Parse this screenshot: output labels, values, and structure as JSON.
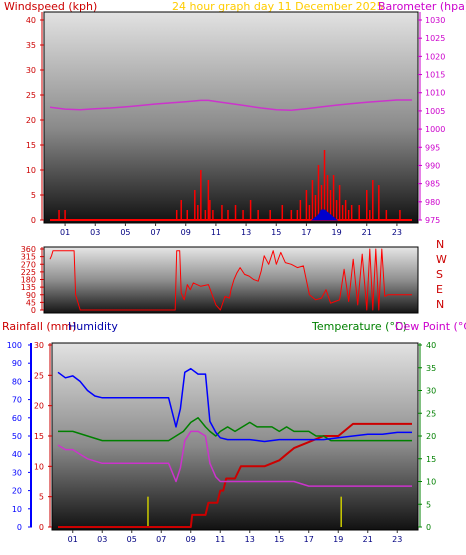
{
  "header": {
    "left_label": "Windspeed (kph)",
    "title": "24 hour graph day   11 December 2025",
    "right_label": "Barometer (hpa)"
  },
  "direction_labels": [
    "N",
    "W",
    "S",
    "E",
    "N"
  ],
  "bottom_header": {
    "rainfall": "Rainfall (mm)",
    "humidity": "Humidity",
    "temperature": "Temperature (°C)",
    "dewpoint": "Dew Point (°C)"
  },
  "colors": {
    "wind": "#ff0000",
    "gust_fill": "#0000cc",
    "barometer": "#cc33cc",
    "direction": "#ff0000",
    "humidity": "#0000ff",
    "temperature": "#008000",
    "dewpoint": "#cc33cc",
    "rain": "#cc0000",
    "rain_rate": "#cccc00",
    "title": "#ffcc00",
    "left_axis": "#cc0000",
    "rain_axis": "#0000ff",
    "temp_axis": "#008000",
    "baro_axis": "#cc00cc"
  },
  "chart_data": [
    {
      "type": "line",
      "id": "wind_baro",
      "x_ticks": [
        "01",
        "03",
        "05",
        "07",
        "09",
        "11",
        "13",
        "15",
        "17",
        "19",
        "21",
        "23"
      ],
      "wind_axis": {
        "ylim": [
          0,
          40
        ],
        "ticks": [
          "0",
          "5",
          "10",
          "15",
          "20",
          "25",
          "30",
          "35",
          "40"
        ]
      },
      "baro_axis": {
        "ylim": [
          975,
          1030
        ],
        "ticks": [
          "975",
          "980",
          "985",
          "990",
          "995",
          "1000",
          "1005",
          "1010",
          "1015",
          "1020",
          "1025",
          "1030"
        ]
      },
      "series": [
        {
          "name": "Windspeed",
          "x": [
            0,
            0.6,
            0.7,
            1,
            1.05,
            1.1,
            8.3,
            8.4,
            8.6,
            8.7,
            8.9,
            9.1,
            9.4,
            9.6,
            9.8,
            10,
            10.3,
            10.5,
            10.6,
            10.8,
            11,
            11.2,
            11.4,
            11.6,
            11.8,
            12,
            12.3,
            12.6,
            12.8,
            13,
            13.3,
            13.5,
            13.8,
            14,
            14.3,
            14.6,
            14.9,
            15.1,
            15.4,
            15.7,
            16,
            16.2,
            16.4,
            16.6,
            16.8,
            17,
            17.2,
            17.4,
            17.6,
            17.8,
            18,
            18.2,
            18.4,
            18.6,
            18.8,
            19,
            19.2,
            19.4,
            19.6,
            19.8,
            20,
            20.2,
            20.5,
            20.8,
            21,
            21.2,
            21.4,
            21.6,
            21.8,
            22,
            22.3,
            22.6,
            22.9,
            23.2,
            23.5,
            24
          ],
          "values": [
            0,
            2,
            0,
            2,
            0,
            0,
            0,
            2,
            0,
            4,
            0,
            2,
            0,
            6,
            3,
            10,
            2,
            8,
            4,
            2,
            0,
            0,
            3,
            0,
            2,
            0,
            3,
            0,
            2,
            0,
            4,
            0,
            2,
            0,
            0,
            2,
            0,
            0,
            3,
            0,
            2,
            0,
            2,
            4,
            0,
            6,
            3,
            8,
            5,
            11,
            7,
            14,
            9,
            6,
            9,
            4,
            7,
            3,
            4,
            2,
            3,
            0,
            3,
            0,
            6,
            2,
            8,
            0,
            7,
            0,
            2,
            0,
            0,
            2,
            0,
            0
          ]
        },
        {
          "name": "Gust",
          "x": [
            17.4,
            17.8,
            18,
            18.2,
            18.6,
            19
          ],
          "values": [
            0,
            1,
            2,
            2,
            1,
            0
          ]
        },
        {
          "name": "Barometer",
          "x": [
            0,
            1,
            2,
            3,
            4,
            5,
            6,
            7,
            8,
            9,
            10,
            10.5,
            11,
            12,
            13,
            14,
            15,
            16,
            17,
            18,
            19,
            20,
            21,
            22,
            23,
            24
          ],
          "values": [
            1006,
            1005.5,
            1005.3,
            1005.6,
            1005.8,
            1006.1,
            1006.5,
            1006.9,
            1007.2,
            1007.5,
            1007.9,
            1007.9,
            1007.6,
            1007.0,
            1006.4,
            1005.8,
            1005.3,
            1005.2,
            1005.6,
            1006.1,
            1006.6,
            1007.0,
            1007.4,
            1007.7,
            1008.0,
            1008.0
          ]
        }
      ]
    },
    {
      "type": "line",
      "id": "direction",
      "x_ticks": [
        "01",
        "03",
        "05",
        "07",
        "09",
        "11",
        "13",
        "15",
        "17",
        "19",
        "21",
        "23"
      ],
      "ylim": [
        0,
        360
      ],
      "y_ticks": [
        "0",
        "45",
        "90",
        "135",
        "180",
        "225",
        "270",
        "315",
        "360"
      ],
      "series": [
        {
          "name": "Direction",
          "x": [
            0,
            0.1,
            0.2,
            1.6,
            1.7,
            2,
            8.3,
            8.4,
            8.6,
            8.7,
            8.9,
            9.1,
            9.3,
            9.5,
            10,
            10.5,
            11,
            11.3,
            11.6,
            11.9,
            12,
            12.2,
            12.4,
            12.6,
            12.9,
            13.2,
            13.5,
            13.8,
            14,
            14.2,
            14.5,
            14.8,
            15,
            15.3,
            15.6,
            16,
            16.4,
            16.8,
            17.2,
            17.6,
            18,
            18.3,
            18.6,
            18.9,
            19.2,
            19.5,
            19.8,
            20.1,
            20.4,
            20.7,
            21,
            21.2,
            21.4,
            21.6,
            21.8,
            22,
            22.2,
            22.4,
            24
          ],
          "values": [
            300,
            320,
            350,
            350,
            90,
            0,
            0,
            350,
            350,
            100,
            60,
            150,
            120,
            160,
            140,
            150,
            30,
            0,
            80,
            70,
            120,
            180,
            220,
            250,
            210,
            200,
            180,
            170,
            230,
            320,
            270,
            350,
            270,
            340,
            280,
            270,
            250,
            260,
            90,
            60,
            70,
            120,
            40,
            50,
            60,
            240,
            50,
            300,
            30,
            330,
            0,
            360,
            0,
            360,
            0,
            360,
            80,
            90,
            90
          ]
        }
      ]
    },
    {
      "type": "line",
      "id": "temp_hum_rain",
      "x_ticks": [
        "01",
        "03",
        "05",
        "07",
        "09",
        "11",
        "13",
        "15",
        "17",
        "19",
        "21",
        "23"
      ],
      "rain_axis": {
        "ylim": [
          0,
          100
        ],
        "ticks": [
          "0",
          "10",
          "20",
          "30",
          "40",
          "50",
          "60",
          "70",
          "80",
          "90",
          "100"
        ]
      },
      "humidity_axis": {
        "ylim": [
          0,
          30
        ],
        "ticks": [
          "0",
          "5",
          "10",
          "15",
          "20",
          "25",
          "30"
        ]
      },
      "temp_axis": {
        "ylim": [
          0,
          40
        ],
        "ticks": [
          "0",
          "5",
          "10",
          "15",
          "20",
          "25",
          "30",
          "35",
          "40"
        ]
      },
      "series": [
        {
          "name": "Humidity",
          "x": [
            0,
            0.5,
            1,
            1.5,
            2,
            2.5,
            3,
            4,
            5,
            6,
            7,
            7.5,
            8,
            8.3,
            8.6,
            9,
            9.5,
            10,
            10.3,
            10.7,
            11,
            11.5,
            12,
            13,
            14,
            15,
            16,
            17,
            18,
            19,
            20,
            21,
            22,
            23,
            24
          ],
          "values": [
            85,
            82,
            83,
            80,
            75,
            72,
            71,
            71,
            71,
            71,
            71,
            71,
            55,
            65,
            85,
            87,
            84,
            84,
            58,
            52,
            49,
            48,
            48,
            48,
            47,
            48,
            48,
            48,
            48,
            49,
            50,
            51,
            51,
            52,
            52
          ]
        },
        {
          "name": "Temperature",
          "x": [
            0,
            1,
            2,
            3,
            4,
            5,
            6,
            7,
            7.5,
            8,
            8.5,
            9,
            9.5,
            10,
            10.3,
            10.7,
            11,
            11.5,
            12,
            12.5,
            13,
            13.5,
            14,
            14.5,
            15,
            15.5,
            16,
            16.5,
            17,
            17.5,
            18,
            18.5,
            19,
            20,
            21,
            22,
            23,
            24
          ],
          "values": [
            21,
            21,
            20,
            19,
            19,
            19,
            19,
            19,
            19,
            20,
            21,
            23,
            24,
            22,
            21,
            20,
            21,
            22,
            21,
            22,
            23,
            22,
            22,
            22,
            21,
            22,
            21,
            21,
            21,
            20,
            20,
            19,
            19,
            19,
            19,
            19,
            19,
            19
          ]
        },
        {
          "name": "Dew Point",
          "x": [
            0,
            0.5,
            1,
            1.5,
            2,
            3,
            4,
            5,
            6,
            7,
            7.5,
            8,
            8.3,
            8.6,
            9,
            9.5,
            10,
            10.3,
            10.7,
            11,
            11.5,
            12,
            13,
            14,
            15,
            16,
            17,
            18,
            19,
            20,
            21,
            22,
            23,
            24
          ],
          "values": [
            18,
            17,
            17,
            16,
            15,
            14,
            14,
            14,
            14,
            14,
            14,
            10,
            13,
            19,
            21,
            21,
            20,
            14,
            11,
            10,
            10,
            10,
            10,
            10,
            10,
            10,
            9,
            9,
            9,
            9,
            9,
            9,
            9,
            9
          ]
        },
        {
          "name": "Rainfall",
          "x": [
            0,
            9,
            9.1,
            10,
            10.2,
            10.8,
            11,
            11.2,
            11.4,
            12,
            12.4,
            13,
            14,
            15,
            15.5,
            16,
            17,
            18,
            19,
            20,
            21,
            22,
            23,
            24
          ],
          "values": [
            0,
            0,
            2,
            2,
            4,
            4,
            6,
            6,
            8,
            8,
            10,
            10,
            10,
            11,
            12,
            13,
            14,
            15,
            15,
            17,
            17,
            17,
            17,
            17
          ]
        },
        {
          "name": "Rain rate",
          "x": [
            6.1,
            19.2
          ],
          "values": [
            5,
            5
          ]
        }
      ]
    }
  ]
}
